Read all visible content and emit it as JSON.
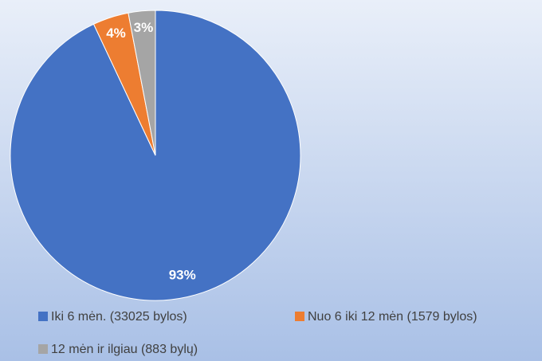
{
  "chart_data": {
    "type": "pie",
    "categories": [
      "Iki 6 mėn. (33025 bylos)",
      "Nuo 6 iki 12 mėn (1579 bylos)",
      "12 mėn ir ilgiau (883 bylų)"
    ],
    "values": [
      93,
      4,
      3
    ],
    "value_labels": [
      "93%",
      "4%",
      "3%"
    ],
    "colors": [
      "#4472c4",
      "#ed7d31",
      "#a5a5a5"
    ]
  }
}
